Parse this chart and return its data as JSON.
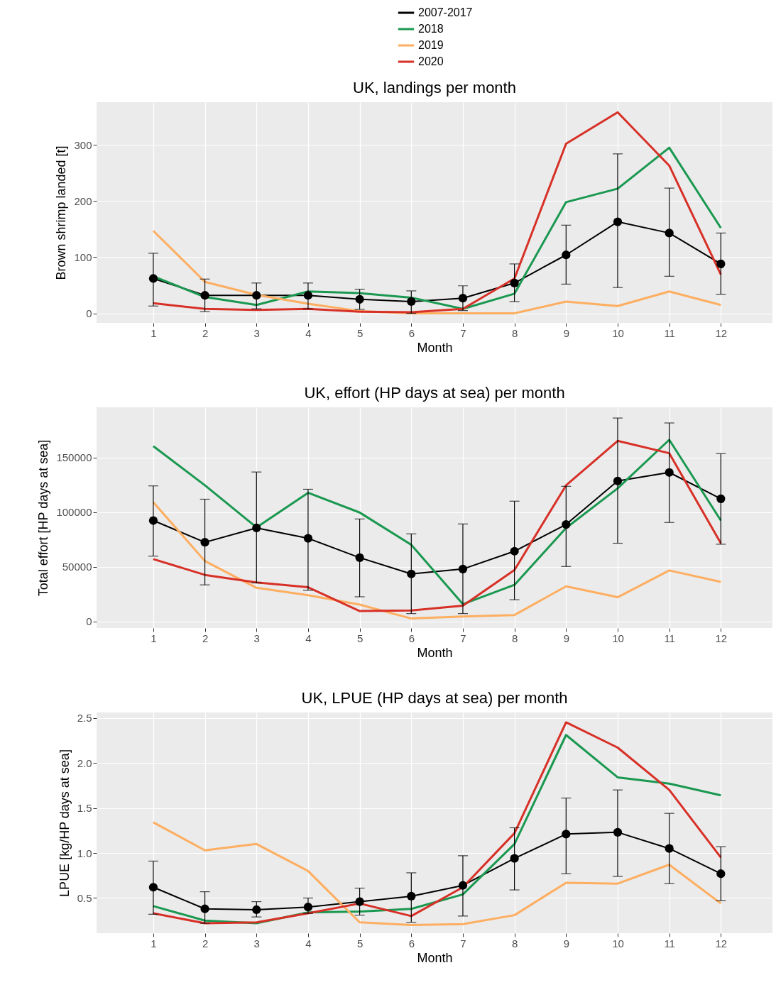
{
  "chart_data": [
    {
      "type": "line",
      "title": "UK, landings per month",
      "xlabel": "Month",
      "ylabel": "Brown shrimp landed [t]",
      "x": [
        1,
        2,
        3,
        4,
        5,
        6,
        7,
        8,
        9,
        10,
        11,
        12
      ],
      "xlim": [
        -0.1,
        13
      ],
      "xticks": [
        1,
        2,
        3,
        4,
        5,
        6,
        7,
        8,
        9,
        10,
        11,
        12
      ],
      "ylim": [
        -17,
        376
      ],
      "yticks": [
        0,
        100,
        200,
        300
      ],
      "grid": true,
      "legend": "top",
      "series": [
        {
          "name": "2007-2017",
          "color": "#000000",
          "marker": "circle",
          "values": [
            62,
            32,
            32,
            32,
            25,
            21,
            27,
            54,
            104,
            163,
            143,
            88
          ],
          "errors": [
            [
              13,
              107
            ],
            [
              3,
              61
            ],
            [
              8,
              54
            ],
            [
              8,
              54
            ],
            [
              7,
              43
            ],
            [
              0,
              40
            ],
            [
              5,
              49
            ],
            [
              21,
              88
            ],
            [
              52,
              157
            ],
            [
              46,
              284
            ],
            [
              66,
              223
            ],
            [
              34,
              143
            ]
          ]
        },
        {
          "name": "2018",
          "color": "#1a9850",
          "values": [
            66,
            29,
            15,
            39,
            36,
            28,
            8,
            35,
            198,
            222,
            295,
            152
          ]
        },
        {
          "name": "2019",
          "color": "#fdae61",
          "values": [
            147,
            56,
            33,
            17,
            4,
            0,
            0,
            0,
            21,
            13,
            39,
            15
          ]
        },
        {
          "name": "2020",
          "color": "#d73027",
          "values": [
            18,
            8,
            6,
            8,
            3,
            2,
            8,
            62,
            302,
            358,
            263,
            69
          ]
        }
      ]
    },
    {
      "type": "line",
      "title": "UK, effort (HP days at sea) per month",
      "xlabel": "Month",
      "ylabel": "Total effort [HP days at sea]",
      "x": [
        1,
        2,
        3,
        4,
        5,
        6,
        7,
        8,
        9,
        10,
        11,
        12
      ],
      "xlim": [
        -0.1,
        13
      ],
      "xticks": [
        1,
        2,
        3,
        4,
        5,
        6,
        7,
        8,
        9,
        10,
        11,
        12
      ],
      "ylim": [
        -6000,
        196000
      ],
      "yticks": [
        0,
        50000,
        100000,
        150000
      ],
      "grid": true,
      "legend": "top",
      "series": [
        {
          "name": "2007-2017",
          "color": "#000000",
          "marker": "circle",
          "values": [
            92400,
            72500,
            85600,
            76100,
            58400,
            43500,
            48000,
            64300,
            88800,
            128600,
            136400,
            112300
          ],
          "errors": [
            [
              59800,
              124100
            ],
            [
              33500,
              111900
            ],
            [
              35300,
              136800
            ],
            [
              28500,
              121000
            ],
            [
              22600,
              93800
            ],
            [
              7200,
              80200
            ],
            [
              7200,
              89200
            ],
            [
              19900,
              110100
            ],
            [
              50300,
              123700
            ],
            [
              71600,
              186200
            ],
            [
              90600,
              181700
            ],
            [
              70700,
              153600
            ]
          ]
        },
        {
          "name": "2018",
          "color": "#1a9850",
          "values": [
            160400,
            124600,
            86100,
            117800,
            99700,
            70200,
            15900,
            33500,
            85600,
            121900,
            166300,
            92400
          ]
        },
        {
          "name": "2019",
          "color": "#fdae61",
          "values": [
            109200,
            55300,
            30800,
            24000,
            15400,
            2700,
            4500,
            5900,
            32200,
            22200,
            46700,
            36200
          ]
        },
        {
          "name": "2020",
          "color": "#d73027",
          "values": [
            57100,
            42600,
            35800,
            31300,
            9500,
            10000,
            14500,
            47100,
            124600,
            165300,
            154000,
            71600
          ]
        }
      ]
    },
    {
      "type": "line",
      "title": "UK, LPUE (HP days at sea) per month",
      "xlabel": "Month",
      "ylabel": "LPUE [kg/HP days at sea]",
      "x": [
        1,
        2,
        3,
        4,
        5,
        6,
        7,
        8,
        9,
        10,
        11,
        12
      ],
      "xlim": [
        -0.1,
        13
      ],
      "xticks": [
        1,
        2,
        3,
        4,
        5,
        6,
        7,
        8,
        9,
        10,
        11,
        12
      ],
      "ylim": [
        0.11,
        2.56
      ],
      "yticks": [
        {
          "value": 0.5,
          "label": "0.5"
        },
        {
          "value": 1,
          "label": "1.0"
        },
        {
          "value": 1.5,
          "label": "1.5"
        },
        {
          "value": 2,
          "label": "2.0"
        },
        {
          "value": 2.5,
          "label": "2.5"
        }
      ],
      "grid": true,
      "legend": "top",
      "series": [
        {
          "name": "2007-2017",
          "color": "#000000",
          "marker": "circle",
          "values": [
            0.62,
            0.38,
            0.37,
            0.4,
            0.46,
            0.52,
            0.64,
            0.94,
            1.21,
            1.23,
            1.05,
            0.77
          ],
          "errors": [
            [
              0.32,
              0.91
            ],
            [
              0.22,
              0.57
            ],
            [
              0.29,
              0.46
            ],
            [
              0.33,
              0.5
            ],
            [
              0.31,
              0.61
            ],
            [
              0.23,
              0.78
            ],
            [
              0.3,
              0.97
            ],
            [
              0.59,
              1.28
            ],
            [
              0.77,
              1.61
            ],
            [
              0.74,
              1.7
            ],
            [
              0.66,
              1.44
            ],
            [
              0.47,
              1.07
            ]
          ]
        },
        {
          "name": "2018",
          "color": "#1a9850",
          "values": [
            0.41,
            0.25,
            0.22,
            0.34,
            0.35,
            0.38,
            0.54,
            1.1,
            2.31,
            1.84,
            1.77,
            1.64
          ]
        },
        {
          "name": "2019",
          "color": "#fdae61",
          "values": [
            1.34,
            1.03,
            1.1,
            0.8,
            0.23,
            0.2,
            0.21,
            0.31,
            0.67,
            0.66,
            0.87,
            0.44
          ]
        },
        {
          "name": "2020",
          "color": "#d73027",
          "values": [
            0.33,
            0.22,
            0.23,
            0.33,
            0.44,
            0.3,
            0.62,
            1.22,
            2.45,
            2.17,
            1.7,
            0.95
          ]
        }
      ]
    }
  ]
}
